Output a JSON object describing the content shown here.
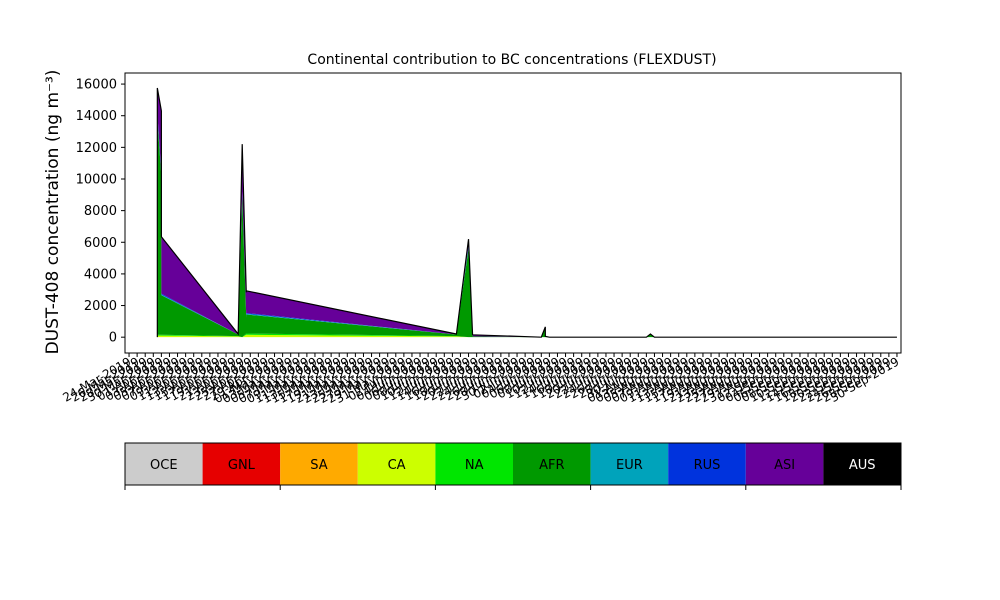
{
  "chart_data": {
    "type": "area",
    "title": "Continental contribution to BC concentrations (FLEXDUST)",
    "ylabel": "DUST-408 concentration (ng m⁻³)",
    "xlabel": "",
    "ylim": [
      -1000,
      16700
    ],
    "xlim": [
      "2019-03-23",
      "2019-10-01"
    ],
    "yticks": [
      0,
      2000,
      4000,
      6000,
      8000,
      10000,
      12000,
      14000,
      16000
    ],
    "ytick_labels": [
      "0",
      "2000",
      "4000",
      "6000",
      "8000",
      "10000",
      "12000",
      "14000",
      "16000"
    ],
    "x": [
      "2019-03-31",
      "2019-03-31",
      "2019-04-01",
      "2019-04-01",
      "2019-04-20",
      "2019-04-21",
      "2019-04-22",
      "2019-04-22",
      "2019-06-13",
      "2019-06-16",
      "2019-06-17",
      "2019-06-17",
      "2019-07-04",
      "2019-07-05",
      "2019-07-05",
      "2019-07-06",
      "2019-07-30",
      "2019-07-31",
      "2019-08-01",
      "2019-09-30"
    ],
    "series": [
      {
        "name": "OCE",
        "color": "#cccccc",
        "values": [
          0,
          0,
          0,
          0,
          0,
          0,
          0,
          0,
          0,
          0,
          0,
          0,
          0,
          0,
          0,
          0,
          0,
          0,
          0,
          0
        ]
      },
      {
        "name": "GNL",
        "color": "#e60000",
        "values": [
          0,
          0,
          0,
          0,
          0,
          0,
          0,
          0,
          0,
          0,
          0,
          0,
          0,
          0,
          0,
          0,
          0,
          0,
          0,
          0
        ]
      },
      {
        "name": "SA",
        "color": "#ffaa00",
        "values": [
          0,
          0,
          0,
          0,
          0,
          0,
          0,
          0,
          0,
          0,
          0,
          0,
          0,
          0,
          0,
          0,
          0,
          0,
          0,
          0
        ]
      },
      {
        "name": "CA",
        "color": "#ccff00",
        "values": [
          0,
          100,
          100,
          100,
          50,
          0,
          150,
          150,
          50,
          0,
          0,
          0,
          0,
          0,
          0,
          0,
          0,
          0,
          0,
          0
        ]
      },
      {
        "name": "NA",
        "color": "#00e600",
        "values": [
          0,
          50,
          50,
          50,
          20,
          0,
          80,
          80,
          20,
          0,
          0,
          0,
          0,
          0,
          0,
          0,
          0,
          0,
          0,
          0
        ]
      },
      {
        "name": "AFR",
        "color": "#009900",
        "values": [
          0,
          13700,
          10000,
          2500,
          100,
          9000,
          1000,
          1200,
          100,
          5600,
          100,
          50,
          0,
          650,
          50,
          0,
          0,
          200,
          0,
          0
        ]
      },
      {
        "name": "EUR",
        "color": "#00a3bb",
        "values": [
          0,
          100,
          100,
          50,
          0,
          100,
          50,
          50,
          0,
          100,
          20,
          0,
          0,
          0,
          0,
          0,
          0,
          0,
          0,
          0
        ]
      },
      {
        "name": "RUS",
        "color": "#0033dd",
        "values": [
          0,
          200,
          100,
          50,
          0,
          100,
          50,
          50,
          0,
          100,
          20,
          0,
          0,
          0,
          0,
          0,
          0,
          0,
          0,
          0
        ]
      },
      {
        "name": "ASI",
        "color": "#660099",
        "values": [
          0,
          1600,
          3950,
          3600,
          30,
          3000,
          1500,
          1400,
          30,
          400,
          0,
          100,
          0,
          0,
          0,
          0,
          0,
          0,
          0,
          0
        ]
      },
      {
        "name": "AUS",
        "color": "#000000",
        "values": [
          0,
          0,
          0,
          0,
          0,
          0,
          0,
          0,
          0,
          0,
          0,
          0,
          0,
          0,
          0,
          0,
          0,
          0,
          0,
          0
        ]
      }
    ],
    "x_tick_labels": [
      "24-Mar-2019",
      "26-Mar-2019",
      "28-Mar-2019",
      "30-Mar-2019",
      "01-Apr-2019",
      "03-Apr-2019",
      "05-Apr-2019",
      "07-Apr-2019",
      "09-Apr-2019",
      "11-Apr-2019",
      "13-Apr-2019",
      "15-Apr-2019",
      "17-Apr-2019",
      "19-Apr-2019",
      "21-Apr-2019",
      "23-Apr-2019",
      "25-Apr-2019",
      "27-Apr-2019",
      "29-Apr-2019",
      "01-May-2019",
      "03-May-2019",
      "05-May-2019",
      "07-May-2019",
      "09-May-2019",
      "11-May-2019",
      "13-May-2019",
      "15-May-2019",
      "17-May-2019",
      "19-May-2019",
      "21-May-2019",
      "23-May-2019",
      "25-May-2019",
      "27-May-2019",
      "29-May-2019",
      "31-May-2019",
      "02-Jun-2019",
      "04-Jun-2019",
      "06-Jun-2019",
      "08-Jun-2019",
      "10-Jun-2019",
      "12-Jun-2019",
      "14-Jun-2019",
      "16-Jun-2019",
      "18-Jun-2019",
      "20-Jun-2019",
      "22-Jun-2019",
      "24-Jun-2019",
      "26-Jun-2019",
      "28-Jun-2019",
      "30-Jun-2019",
      "02-Jul-2019",
      "04-Jul-2019",
      "06-Jul-2019",
      "08-Jul-2019",
      "10-Jul-2019",
      "12-Jul-2019",
      "14-Jul-2019",
      "16-Jul-2019",
      "18-Jul-2019",
      "20-Jul-2019",
      "22-Jul-2019",
      "24-Jul-2019",
      "26-Jul-2019",
      "28-Jul-2019",
      "30-Jul-2019",
      "01-Aug-2019",
      "03-Aug-2019",
      "05-Aug-2019",
      "07-Aug-2019",
      "09-Aug-2019",
      "11-Aug-2019",
      "13-Aug-2019",
      "15-Aug-2019",
      "17-Aug-2019",
      "19-Aug-2019",
      "21-Aug-2019",
      "23-Aug-2019",
      "25-Aug-2019",
      "27-Aug-2019",
      "29-Aug-2019",
      "31-Aug-2019",
      "02-Sep-2019",
      "04-Sep-2019",
      "06-Sep-2019",
      "08-Sep-2019",
      "10-Sep-2019",
      "12-Sep-2019",
      "14-Sep-2019",
      "16-Sep-2019",
      "18-Sep-2019",
      "20-Sep-2019",
      "22-Sep-2019",
      "24-Sep-2019",
      "26-Sep-2019",
      "28-Sep-2019",
      "30-Sep-2019"
    ],
    "legend_placement": "bottom (colorbar)",
    "grid": false
  }
}
